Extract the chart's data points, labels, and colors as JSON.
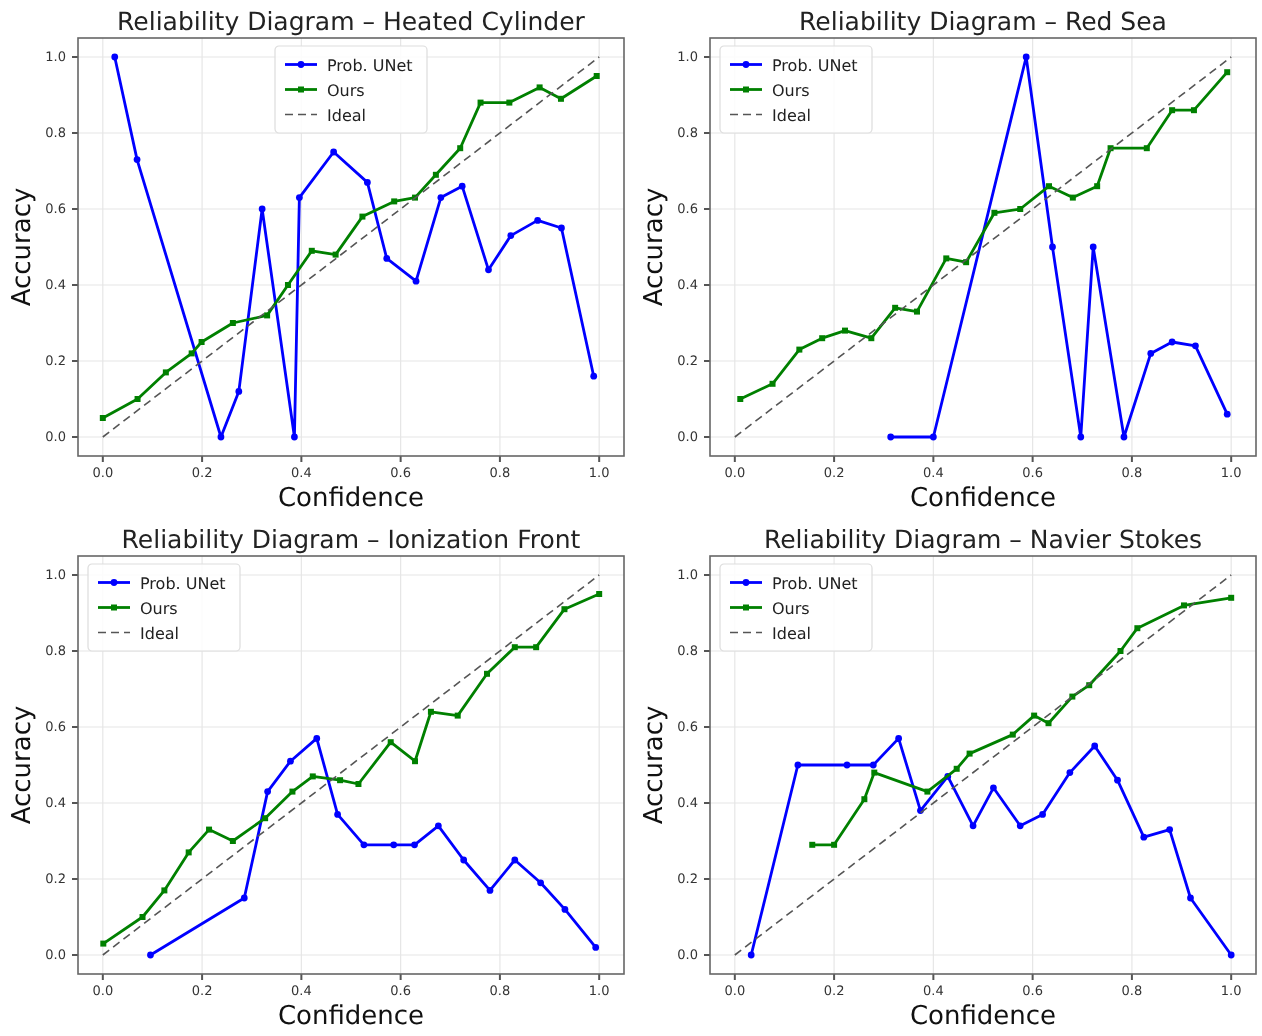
{
  "chart_data": [
    {
      "type": "line",
      "title": "Reliability Diagram – Heated Cylinder",
      "xlabel": "Confidence",
      "ylabel": "Accuracy",
      "xlim": [
        -0.05,
        1.05
      ],
      "ylim": [
        -0.05,
        1.05
      ],
      "xticks": [
        {
          "value": 0,
          "label": "0.0"
        },
        {
          "value": 0.2,
          "label": "0.2"
        },
        {
          "value": 0.4,
          "label": "0.4"
        },
        {
          "value": 0.6,
          "label": "0.6"
        },
        {
          "value": 0.8,
          "label": "0.8"
        },
        {
          "value": 1,
          "label": "1.0"
        }
      ],
      "yticks": [
        {
          "value": 0,
          "label": "0.0"
        },
        {
          "value": 0.2,
          "label": "0.2"
        },
        {
          "value": 0.4,
          "label": "0.4"
        },
        {
          "value": 0.6,
          "label": "0.6"
        },
        {
          "value": 0.8,
          "label": "0.8"
        },
        {
          "value": 1,
          "label": "1.0"
        }
      ],
      "grid": true,
      "legend": "top center",
      "series": [
        {
          "name": "Prob. UNet",
          "color": "#0000ff",
          "marker": "circle",
          "x": [
            0.024,
            0.069,
            0.238,
            0.274,
            0.321,
            0.386,
            0.396,
            0.465,
            0.533,
            0.572,
            0.631,
            0.681,
            0.724,
            0.777,
            0.822,
            0.876,
            0.924,
            0.989
          ],
          "values": [
            1.0,
            0.73,
            0.0,
            0.12,
            0.6,
            0.0,
            0.63,
            0.75,
            0.67,
            0.47,
            0.41,
            0.63,
            0.66,
            0.44,
            0.53,
            0.57,
            0.55,
            0.16
          ]
        },
        {
          "name": "Ours",
          "color": "#008000",
          "marker": "square",
          "x": [
            0.0,
            0.07,
            0.127,
            0.179,
            0.199,
            0.262,
            0.331,
            0.373,
            0.421,
            0.469,
            0.523,
            0.587,
            0.629,
            0.671,
            0.72,
            0.761,
            0.819,
            0.88,
            0.923,
            0.995
          ],
          "values": [
            0.05,
            0.1,
            0.17,
            0.22,
            0.25,
            0.3,
            0.32,
            0.4,
            0.49,
            0.48,
            0.58,
            0.62,
            0.63,
            0.69,
            0.76,
            0.88,
            0.88,
            0.92,
            0.89,
            0.95
          ]
        },
        {
          "name": "Ideal",
          "color": "#555555",
          "marker": "none",
          "line_style": "dashed",
          "x": [
            0,
            1
          ],
          "values": [
            0,
            1
          ]
        }
      ]
    },
    {
      "type": "line",
      "title": "Reliability Diagram – Red Sea",
      "xlabel": "Confidence",
      "ylabel": "Accuracy",
      "xlim": [
        -0.05,
        1.05
      ],
      "ylim": [
        -0.05,
        1.05
      ],
      "xticks": [
        {
          "value": 0,
          "label": "0.0"
        },
        {
          "value": 0.2,
          "label": "0.2"
        },
        {
          "value": 0.4,
          "label": "0.4"
        },
        {
          "value": 0.6,
          "label": "0.6"
        },
        {
          "value": 0.8,
          "label": "0.8"
        },
        {
          "value": 1,
          "label": "1.0"
        }
      ],
      "yticks": [
        {
          "value": 0,
          "label": "0.0"
        },
        {
          "value": 0.2,
          "label": "0.2"
        },
        {
          "value": 0.4,
          "label": "0.4"
        },
        {
          "value": 0.6,
          "label": "0.6"
        },
        {
          "value": 0.8,
          "label": "0.8"
        },
        {
          "value": 1,
          "label": "1.0"
        }
      ],
      "grid": true,
      "legend": "top left",
      "series": [
        {
          "name": "Prob. UNet",
          "color": "#0000ff",
          "marker": "circle",
          "x": [
            0.314,
            0.4,
            0.587,
            0.64,
            0.697,
            0.722,
            0.784,
            0.838,
            0.881,
            0.928,
            0.992
          ],
          "values": [
            0.0,
            0.0,
            1.0,
            0.5,
            0.0,
            0.5,
            0.0,
            0.22,
            0.25,
            0.24,
            0.06
          ]
        },
        {
          "name": "Ours",
          "color": "#008000",
          "marker": "square",
          "x": [
            0.011,
            0.076,
            0.13,
            0.176,
            0.222,
            0.275,
            0.323,
            0.367,
            0.426,
            0.466,
            0.523,
            0.575,
            0.633,
            0.681,
            0.73,
            0.757,
            0.83,
            0.881,
            0.925,
            0.992
          ],
          "values": [
            0.1,
            0.14,
            0.23,
            0.26,
            0.28,
            0.26,
            0.34,
            0.33,
            0.47,
            0.46,
            0.59,
            0.6,
            0.66,
            0.63,
            0.66,
            0.76,
            0.76,
            0.86,
            0.86,
            0.96
          ]
        },
        {
          "name": "Ideal",
          "color": "#555555",
          "marker": "none",
          "line_style": "dashed",
          "x": [
            0,
            1
          ],
          "values": [
            0,
            1
          ]
        }
      ]
    },
    {
      "type": "line",
      "title": "Reliability Diagram – Ionization Front",
      "xlabel": "Confidence",
      "ylabel": "Accuracy",
      "xlim": [
        -0.05,
        1.05
      ],
      "ylim": [
        -0.05,
        1.05
      ],
      "xticks": [
        {
          "value": 0,
          "label": "0.0"
        },
        {
          "value": 0.2,
          "label": "0.2"
        },
        {
          "value": 0.4,
          "label": "0.4"
        },
        {
          "value": 0.6,
          "label": "0.6"
        },
        {
          "value": 0.8,
          "label": "0.8"
        },
        {
          "value": 1,
          "label": "1.0"
        }
      ],
      "yticks": [
        {
          "value": 0,
          "label": "0.0"
        },
        {
          "value": 0.2,
          "label": "0.2"
        },
        {
          "value": 0.4,
          "label": "0.4"
        },
        {
          "value": 0.6,
          "label": "0.6"
        },
        {
          "value": 0.8,
          "label": "0.8"
        },
        {
          "value": 1,
          "label": "1.0"
        }
      ],
      "grid": true,
      "legend": "top left",
      "series": [
        {
          "name": "Prob. UNet",
          "color": "#0000ff",
          "marker": "circle",
          "x": [
            0.096,
            0.285,
            0.332,
            0.378,
            0.431,
            0.473,
            0.526,
            0.586,
            0.628,
            0.676,
            0.727,
            0.78,
            0.83,
            0.882,
            0.931,
            0.993
          ],
          "values": [
            0.0,
            0.15,
            0.43,
            0.51,
            0.57,
            0.37,
            0.29,
            0.29,
            0.29,
            0.34,
            0.25,
            0.17,
            0.25,
            0.19,
            0.12,
            0.02
          ]
        },
        {
          "name": "Ours",
          "color": "#008000",
          "marker": "square",
          "x": [
            0.001,
            0.08,
            0.124,
            0.173,
            0.214,
            0.262,
            0.327,
            0.382,
            0.423,
            0.478,
            0.515,
            0.58,
            0.629,
            0.661,
            0.715,
            0.774,
            0.83,
            0.873,
            0.93,
            1.0
          ],
          "values": [
            0.03,
            0.1,
            0.17,
            0.27,
            0.33,
            0.3,
            0.36,
            0.43,
            0.47,
            0.46,
            0.45,
            0.56,
            0.51,
            0.64,
            0.63,
            0.74,
            0.81,
            0.81,
            0.91,
            0.95
          ]
        },
        {
          "name": "Ideal",
          "color": "#555555",
          "marker": "none",
          "line_style": "dashed",
          "x": [
            0,
            1
          ],
          "values": [
            0,
            1
          ]
        }
      ]
    },
    {
      "type": "line",
      "title": "Reliability Diagram – Navier Stokes",
      "xlabel": "Confidence",
      "ylabel": "Accuracy",
      "xlim": [
        -0.05,
        1.05
      ],
      "ylim": [
        -0.05,
        1.05
      ],
      "xticks": [
        {
          "value": 0,
          "label": "0.0"
        },
        {
          "value": 0.2,
          "label": "0.2"
        },
        {
          "value": 0.4,
          "label": "0.4"
        },
        {
          "value": 0.6,
          "label": "0.6"
        },
        {
          "value": 0.8,
          "label": "0.8"
        },
        {
          "value": 1,
          "label": "1.0"
        }
      ],
      "yticks": [
        {
          "value": 0,
          "label": "0.0"
        },
        {
          "value": 0.2,
          "label": "0.2"
        },
        {
          "value": 0.4,
          "label": "0.4"
        },
        {
          "value": 0.6,
          "label": "0.6"
        },
        {
          "value": 0.8,
          "label": "0.8"
        },
        {
          "value": 1,
          "label": "1.0"
        }
      ],
      "grid": true,
      "legend": "top left",
      "series": [
        {
          "name": "Prob. UNet",
          "color": "#0000ff",
          "marker": "circle",
          "x": [
            0.033,
            0.127,
            0.226,
            0.279,
            0.33,
            0.374,
            0.429,
            0.48,
            0.521,
            0.575,
            0.62,
            0.675,
            0.725,
            0.771,
            0.824,
            0.876,
            0.918,
            1.0
          ],
          "values": [
            0.0,
            0.5,
            0.5,
            0.5,
            0.57,
            0.38,
            0.47,
            0.34,
            0.44,
            0.34,
            0.37,
            0.48,
            0.55,
            0.46,
            0.31,
            0.33,
            0.15,
            0.0
          ]
        },
        {
          "name": "Ours",
          "color": "#008000",
          "marker": "square",
          "x": [
            0.156,
            0.2,
            0.261,
            0.281,
            0.388,
            0.447,
            0.473,
            0.56,
            0.603,
            0.632,
            0.68,
            0.714,
            0.777,
            0.811,
            0.905,
            1.0
          ],
          "values": [
            0.29,
            0.29,
            0.41,
            0.48,
            0.43,
            0.49,
            0.53,
            0.58,
            0.63,
            0.61,
            0.68,
            0.71,
            0.8,
            0.86,
            0.92,
            0.94
          ]
        },
        {
          "name": "Ideal",
          "color": "#555555",
          "marker": "none",
          "line_style": "dashed",
          "x": [
            0,
            1
          ],
          "values": [
            0,
            1
          ]
        }
      ]
    }
  ]
}
